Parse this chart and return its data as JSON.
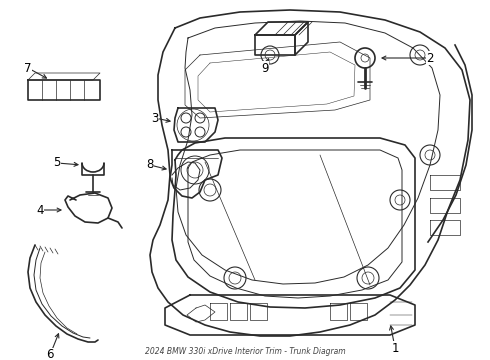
{
  "title": "2024 BMW 330i xDrive Interior Trim - Trunk Diagram",
  "background_color": "#ffffff",
  "line_color": "#2a2a2a",
  "label_color": "#000000",
  "fig_w": 4.9,
  "fig_h": 3.6,
  "dpi": 100
}
